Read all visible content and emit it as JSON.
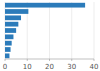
{
  "chart_data": {
    "type": "bar",
    "orientation": "horizontal",
    "categories": [
      null,
      null,
      null,
      null,
      null,
      null,
      null,
      null,
      null
    ],
    "values": [
      36.0,
      10.5,
      7.2,
      6.0,
      5.0,
      3.8,
      3.0,
      2.5,
      2.0
    ],
    "color": "#2b7bba",
    "xlim": [
      0,
      40
    ],
    "xticks": [
      0,
      10,
      20,
      30,
      40
    ],
    "grid": true,
    "tick_labels": "x"
  }
}
